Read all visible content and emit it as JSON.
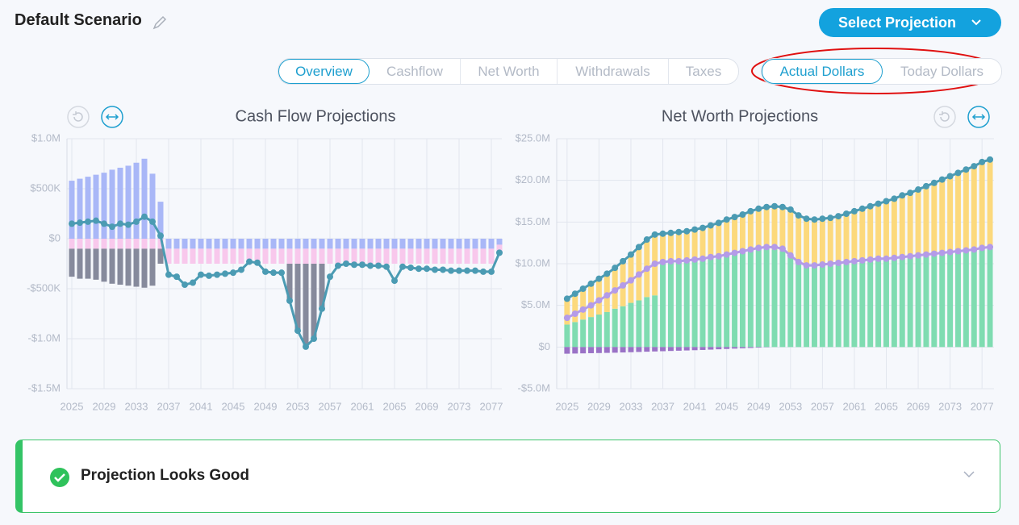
{
  "header": {
    "title": "Default Scenario",
    "button": "Select Projection"
  },
  "tabs": [
    "Overview",
    "Cashflow",
    "Net Worth",
    "Withdrawals",
    "Taxes"
  ],
  "dollar_toggle": [
    "Actual Dollars",
    "Today Dollars"
  ],
  "chart_data": [
    {
      "type": "bar",
      "stacked": true,
      "title": "Cash Flow Projections",
      "grid": true,
      "x": [
        2025,
        2026,
        2027,
        2028,
        2029,
        2030,
        2031,
        2032,
        2033,
        2034,
        2035,
        2036,
        2037,
        2038,
        2039,
        2040,
        2041,
        2042,
        2043,
        2044,
        2045,
        2046,
        2047,
        2048,
        2049,
        2050,
        2051,
        2052,
        2053,
        2054,
        2055,
        2056,
        2057,
        2058,
        2059,
        2060,
        2061,
        2062,
        2063,
        2064,
        2065,
        2066,
        2067,
        2068,
        2069,
        2070,
        2071,
        2072,
        2073,
        2074,
        2075,
        2076,
        2077,
        2078
      ],
      "xlim": [
        2024.4,
        2078.3
      ],
      "xticks": [
        2025,
        2029,
        2033,
        2037,
        2041,
        2045,
        2049,
        2053,
        2057,
        2061,
        2065,
        2069,
        2073,
        2077
      ],
      "ylim": [
        -1.5,
        1.0
      ],
      "yticks": [
        {
          "value": 1.0,
          "label": "$1.0M"
        },
        {
          "value": 0.5,
          "label": "$500K"
        },
        {
          "value": 0,
          "label": "$0"
        },
        {
          "value": -0.5,
          "label": "-$500K"
        },
        {
          "value": -1.0,
          "label": "-$1.0M"
        },
        {
          "value": -1.5,
          "label": "-$1.5M"
        }
      ],
      "series": [
        {
          "color": "#a9b7f7",
          "values": [
            0.58,
            0.6,
            0.62,
            0.64,
            0.66,
            0.69,
            0.71,
            0.73,
            0.76,
            0.8,
            0.65,
            0.37,
            -0.1,
            -0.1,
            -0.1,
            -0.1,
            -0.1,
            -0.1,
            -0.1,
            -0.1,
            -0.1,
            -0.1,
            -0.1,
            -0.1,
            -0.1,
            -0.1,
            -0.1,
            -0.1,
            -0.1,
            -0.1,
            -0.1,
            -0.1,
            -0.1,
            -0.1,
            -0.1,
            -0.1,
            -0.1,
            -0.1,
            -0.1,
            -0.1,
            -0.1,
            -0.1,
            -0.1,
            -0.1,
            -0.1,
            -0.1,
            -0.1,
            -0.1,
            -0.1,
            -0.1,
            -0.1,
            -0.1,
            -0.1,
            -0.06
          ]
        },
        {
          "color": "#f8c8ec",
          "values": [
            -0.1,
            -0.1,
            -0.1,
            -0.1,
            -0.1,
            -0.1,
            -0.1,
            -0.1,
            -0.1,
            -0.1,
            -0.1,
            -0.1,
            -0.15,
            -0.15,
            -0.15,
            -0.15,
            -0.15,
            -0.15,
            -0.15,
            -0.15,
            -0.15,
            -0.15,
            -0.15,
            -0.15,
            -0.15,
            -0.15,
            -0.15,
            -0.15,
            -0.15,
            -0.15,
            -0.15,
            -0.15,
            -0.15,
            -0.15,
            -0.15,
            -0.15,
            -0.15,
            -0.15,
            -0.15,
            -0.15,
            -0.15,
            -0.15,
            -0.15,
            -0.15,
            -0.15,
            -0.15,
            -0.15,
            -0.15,
            -0.15,
            -0.15,
            -0.15,
            -0.15,
            -0.15,
            -0.08
          ]
        },
        {
          "color": "#868a9c",
          "values": [
            -0.28,
            -0.3,
            -0.3,
            -0.31,
            -0.33,
            -0.35,
            -0.36,
            -0.37,
            -0.38,
            -0.39,
            -0.37,
            -0.15,
            0,
            0,
            0,
            0,
            0,
            0,
            0,
            0,
            0,
            0,
            0,
            0,
            0,
            0,
            0,
            -0.37,
            -0.67,
            -0.83,
            -0.75,
            -0.45,
            0,
            0,
            0,
            0,
            0,
            0,
            0,
            0,
            0,
            0,
            0,
            0,
            0,
            0,
            0,
            0,
            0,
            0,
            0,
            0,
            0,
            0
          ]
        },
        {
          "type": "line",
          "color": "#4b9bb3",
          "values": [
            0.15,
            0.16,
            0.17,
            0.18,
            0.15,
            0.12,
            0.15,
            0.14,
            0.17,
            0.22,
            0.17,
            0.03,
            -0.36,
            -0.38,
            -0.46,
            -0.44,
            -0.36,
            -0.37,
            -0.36,
            -0.35,
            -0.34,
            -0.31,
            -0.23,
            -0.24,
            -0.33,
            -0.34,
            -0.34,
            -0.62,
            -0.92,
            -1.08,
            -1.0,
            -0.7,
            -0.38,
            -0.27,
            -0.25,
            -0.26,
            -0.26,
            -0.27,
            -0.27,
            -0.28,
            -0.42,
            -0.28,
            -0.29,
            -0.3,
            -0.3,
            -0.31,
            -0.31,
            -0.32,
            -0.32,
            -0.32,
            -0.32,
            -0.33,
            -0.33,
            -0.14
          ]
        }
      ]
    },
    {
      "type": "bar",
      "stacked": true,
      "title": "Net Worth Projections",
      "grid": true,
      "x": [
        2025,
        2026,
        2027,
        2028,
        2029,
        2030,
        2031,
        2032,
        2033,
        2034,
        2035,
        2036,
        2037,
        2038,
        2039,
        2040,
        2041,
        2042,
        2043,
        2044,
        2045,
        2046,
        2047,
        2048,
        2049,
        2050,
        2051,
        2052,
        2053,
        2054,
        2055,
        2056,
        2057,
        2058,
        2059,
        2060,
        2061,
        2062,
        2063,
        2064,
        2065,
        2066,
        2067,
        2068,
        2069,
        2070,
        2071,
        2072,
        2073,
        2074,
        2075,
        2076,
        2077,
        2078
      ],
      "xlim": [
        2023.7,
        2078.5
      ],
      "xticks": [
        2025,
        2029,
        2033,
        2037,
        2041,
        2045,
        2049,
        2053,
        2057,
        2061,
        2065,
        2069,
        2073,
        2077
      ],
      "ylim": [
        -5,
        25
      ],
      "yticks": [
        {
          "value": 25,
          "label": "$25.0M"
        },
        {
          "value": 20,
          "label": "$20.0M"
        },
        {
          "value": 15,
          "label": "$15.0M"
        },
        {
          "value": 10,
          "label": "$10.0M"
        },
        {
          "value": 5,
          "label": "$5.0M"
        },
        {
          "value": 0,
          "label": "$0"
        },
        {
          "value": -5,
          "label": "-$5.0M"
        }
      ],
      "series": [
        {
          "color": "#7fdcb1",
          "values": [
            2.7,
            3.0,
            3.3,
            3.6,
            3.9,
            4.2,
            4.6,
            4.9,
            5.3,
            5.6,
            6.0,
            6.2,
            10.0,
            10.1,
            10.2,
            10.3,
            10.4,
            10.5,
            10.7,
            10.8,
            11.0,
            11.2,
            11.4,
            11.6,
            11.7,
            11.8,
            11.7,
            11.5,
            10.8,
            10.2,
            9.8,
            9.7,
            9.8,
            9.9,
            10.0,
            10.1,
            10.2,
            10.3,
            10.4,
            10.5,
            10.5,
            10.6,
            10.7,
            10.8,
            10.9,
            11.0,
            11.1,
            11.2,
            11.3,
            11.4,
            11.5,
            11.6,
            11.7,
            11.8
          ]
        },
        {
          "color": "#fcd97c",
          "values": [
            3.1,
            3.4,
            3.7,
            4.0,
            4.3,
            4.6,
            4.9,
            5.4,
            5.8,
            6.4,
            6.9,
            7.3,
            3.6,
            3.6,
            3.6,
            3.6,
            3.7,
            3.8,
            3.9,
            4.1,
            4.3,
            4.4,
            4.5,
            4.7,
            4.9,
            5.0,
            5.2,
            5.3,
            5.7,
            5.6,
            5.6,
            5.6,
            5.6,
            5.6,
            5.7,
            5.9,
            6.1,
            6.3,
            6.5,
            6.7,
            7.0,
            7.2,
            7.5,
            7.7,
            8.0,
            8.3,
            8.6,
            8.9,
            9.2,
            9.5,
            9.8,
            10.1,
            10.5,
            10.7
          ]
        },
        {
          "color": "#9a72c6",
          "values": [
            -0.8,
            -0.78,
            -0.76,
            -0.74,
            -0.72,
            -0.7,
            -0.68,
            -0.65,
            -0.62,
            -0.59,
            -0.56,
            -0.53,
            -0.5,
            -0.47,
            -0.44,
            -0.41,
            -0.38,
            -0.35,
            -0.31,
            -0.27,
            -0.23,
            -0.19,
            -0.15,
            -0.11,
            -0.07,
            -0.03,
            0,
            0,
            0,
            0,
            0,
            0,
            0,
            0,
            0,
            0,
            0,
            0,
            0,
            0,
            0,
            0,
            0,
            0,
            0,
            0,
            0,
            0,
            0,
            0,
            0,
            0,
            0,
            0
          ]
        },
        {
          "type": "line",
          "color": "#b49be8",
          "values": [
            3.5,
            4.0,
            4.5,
            5.0,
            5.6,
            6.2,
            6.8,
            7.4,
            8.0,
            8.7,
            9.4,
            10.0,
            10.2,
            10.3,
            10.3,
            10.4,
            10.5,
            10.6,
            10.8,
            10.9,
            11.1,
            11.3,
            11.5,
            11.7,
            11.9,
            12.0,
            12.0,
            11.8,
            11.0,
            10.2,
            9.8,
            9.8,
            9.9,
            10.0,
            10.1,
            10.2,
            10.3,
            10.4,
            10.5,
            10.6,
            10.6,
            10.7,
            10.8,
            10.9,
            11.0,
            11.1,
            11.2,
            11.3,
            11.4,
            11.5,
            11.6,
            11.7,
            11.9,
            12.0
          ]
        },
        {
          "type": "line",
          "color": "#4b9bb3",
          "values": [
            5.8,
            6.4,
            7.0,
            7.6,
            8.2,
            8.8,
            9.5,
            10.3,
            11.1,
            12.0,
            12.9,
            13.5,
            13.6,
            13.7,
            13.8,
            13.9,
            14.1,
            14.3,
            14.6,
            14.9,
            15.3,
            15.6,
            15.9,
            16.3,
            16.6,
            16.8,
            16.9,
            16.8,
            16.5,
            15.8,
            15.4,
            15.3,
            15.4,
            15.5,
            15.7,
            16.0,
            16.3,
            16.6,
            16.9,
            17.2,
            17.5,
            17.8,
            18.2,
            18.5,
            18.9,
            19.3,
            19.7,
            20.1,
            20.5,
            20.9,
            21.3,
            21.7,
            22.2,
            22.5
          ]
        }
      ]
    }
  ],
  "status": {
    "text": "Projection Looks Good"
  }
}
